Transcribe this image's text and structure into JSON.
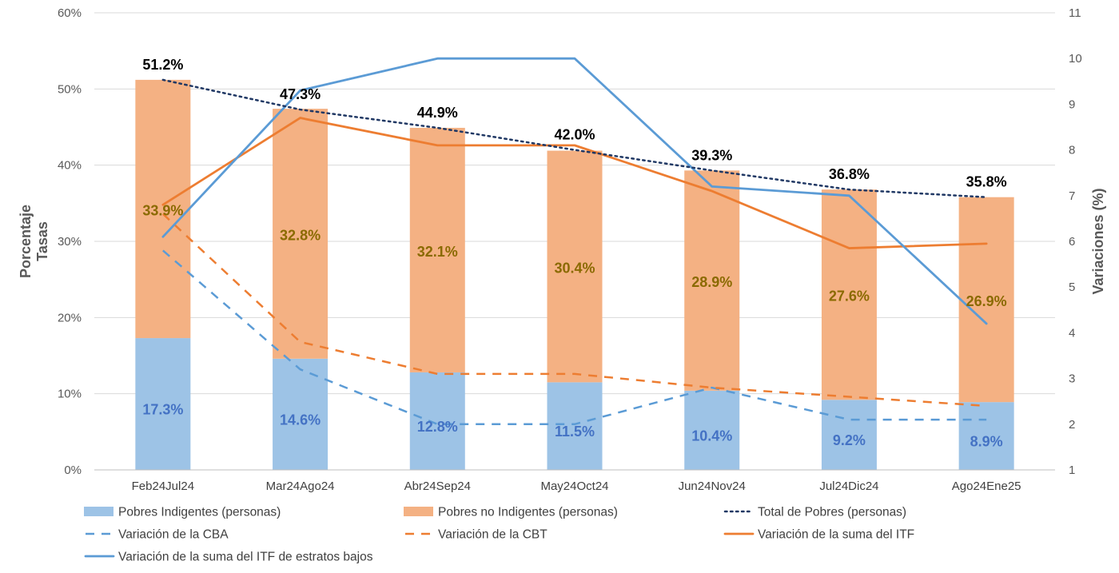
{
  "chart_data": {
    "type": "bar",
    "categories": [
      "Feb24Jul24",
      "Mar24Ago24",
      "Abr24Sep24",
      "May24Oct24",
      "Jun24Nov24",
      "Jul24Dic24",
      "Ago24Ene25"
    ],
    "y_left": {
      "label_line1": "Porcentaje",
      "label_line2": "Tasas",
      "range": [
        0,
        60
      ],
      "ticks": [
        0,
        10,
        20,
        30,
        40,
        50,
        60
      ],
      "tick_labels": [
        "0%",
        "10%",
        "20%",
        "30%",
        "40%",
        "50%",
        "60%"
      ]
    },
    "y_right": {
      "label": "Variaciones (%)",
      "range": [
        1,
        11
      ],
      "ticks": [
        1,
        2,
        3,
        4,
        5,
        6,
        7,
        8,
        9,
        10,
        11
      ],
      "tick_labels": [
        "1",
        "2",
        "3",
        "4",
        "5",
        "6",
        "7",
        "8",
        "9",
        "10",
        "11"
      ]
    },
    "gridlines": true,
    "series": [
      {
        "name": "Pobres Indigentes (personas)",
        "kind": "stacked-bar",
        "axis": "left",
        "color": "#9dc3e6",
        "label_color": "#4472c4",
        "values": [
          17.3,
          14.6,
          12.8,
          11.5,
          10.4,
          9.2,
          8.9
        ],
        "labels": [
          "17.3%",
          "14.6%",
          "12.8%",
          "11.5%",
          "10.4%",
          "9.2%",
          "8.9%"
        ]
      },
      {
        "name": "Pobres no Indigentes (personas)",
        "kind": "stacked-bar",
        "axis": "left",
        "color": "#f4b183",
        "label_color": "#8a6a00",
        "values": [
          33.9,
          32.8,
          32.1,
          30.4,
          28.9,
          27.6,
          26.9
        ],
        "labels": [
          "33.9%",
          "32.8%",
          "32.1%",
          "30.4%",
          "28.9%",
          "27.6%",
          "26.9%"
        ]
      },
      {
        "name": "Total de Pobres (personas)",
        "kind": "line-dotted",
        "axis": "left",
        "color": "#203864",
        "values": [
          51.2,
          47.3,
          44.9,
          42.0,
          39.3,
          36.8,
          35.8
        ],
        "labels": [
          "51.2%",
          "47.3%",
          "44.9%",
          "42.0%",
          "39.3%",
          "36.8%",
          "35.8%"
        ]
      },
      {
        "name": "Variación de la CBA",
        "kind": "line-dashed",
        "axis": "right",
        "color": "#5b9bd5",
        "values": [
          5.8,
          3.2,
          2.0,
          2.0,
          2.8,
          2.1,
          2.1
        ]
      },
      {
        "name": "Variación de la CBT",
        "kind": "line-dashed",
        "axis": "right",
        "color": "#ed7d31",
        "values": [
          6.6,
          3.8,
          3.1,
          3.1,
          2.8,
          2.6,
          2.4
        ]
      },
      {
        "name": "Variación de la suma del ITF",
        "kind": "line",
        "axis": "right",
        "color": "#ed7d31",
        "values": [
          6.8,
          8.7,
          8.1,
          8.1,
          7.1,
          5.85,
          5.95
        ]
      },
      {
        "name": "Variación de la suma del ITF de estratos bajos",
        "kind": "line",
        "axis": "right",
        "color": "#5b9bd5",
        "values": [
          6.1,
          9.3,
          10.0,
          10.0,
          7.2,
          7.0,
          4.2
        ]
      }
    ]
  }
}
